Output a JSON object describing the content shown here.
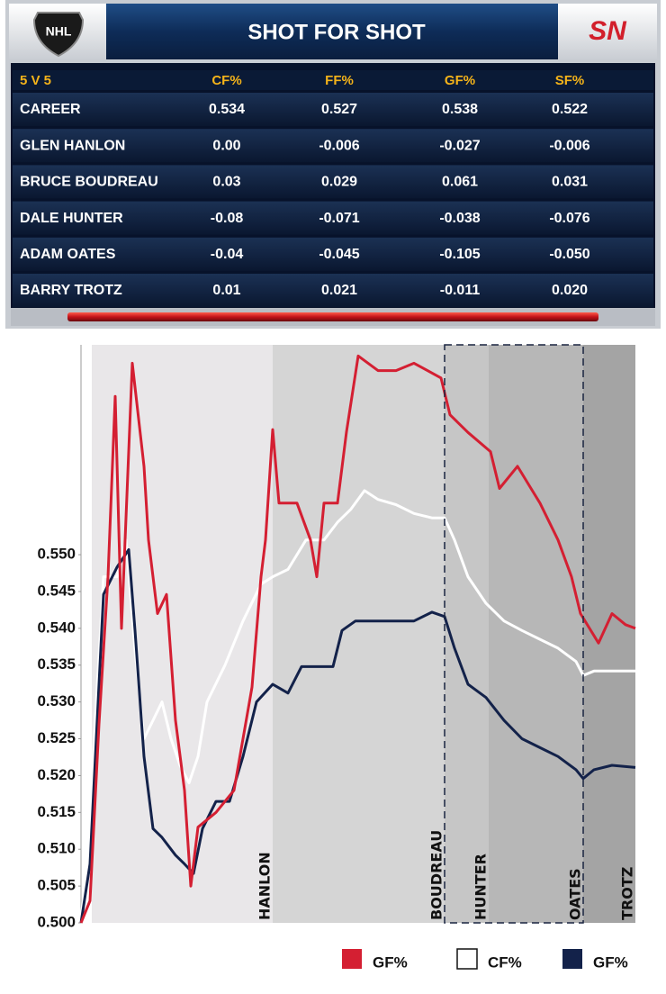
{
  "header": {
    "logo_left": "NHL",
    "title": "SHOT FOR SHOT",
    "logo_right": "SN"
  },
  "table": {
    "header": [
      "5 V 5",
      "CF%",
      "FF%",
      "GF%",
      "SF%"
    ],
    "rows": [
      [
        "CAREER",
        "0.534",
        "0.527",
        "0.538",
        "0.522"
      ],
      [
        "GLEN HANLON",
        "0.00",
        "-0.006",
        "-0.027",
        "-0.006"
      ],
      [
        "BRUCE BOUDREAU",
        "0.03",
        "0.029",
        "0.061",
        "0.031"
      ],
      [
        "DALE HUNTER",
        "-0.08",
        "-0.071",
        "-0.038",
        "-0.076"
      ],
      [
        "ADAM OATES",
        "-0.04",
        "-0.045",
        "-0.105",
        "-0.050"
      ],
      [
        "BARRY TROTZ",
        "0.01",
        "0.021",
        "-0.011",
        "0.020"
      ]
    ]
  },
  "chart_data": {
    "type": "line",
    "xlim": [
      0,
      616
    ],
    "ylim": [
      0.5,
      0.5785
    ],
    "yticks": [
      {
        "value": 0.5,
        "label": "0.500"
      },
      0.505,
      {
        "value": 0.51,
        "label": "0.510"
      },
      0.515,
      {
        "value": 0.52,
        "label": "0.520"
      },
      0.525,
      {
        "value": 0.53,
        "label": "0.530"
      },
      0.535,
      {
        "value": 0.54,
        "label": "0.540"
      },
      0.545,
      {
        "value": 0.55,
        "label": "0.550"
      }
    ],
    "eras": [
      {
        "label": "HANLON",
        "end": 213,
        "color": "#e9e7e9"
      },
      {
        "label": "BOUDREAU",
        "end": 404,
        "color": "#d5d5d5"
      },
      {
        "label": "HUNTER",
        "end": 453,
        "color": "#c6c6c6"
      },
      {
        "label": "OATES",
        "end": 558,
        "color": "#b7b7b7"
      },
      {
        "label": "TROTZ",
        "end": 616,
        "color": "#a4a4a4"
      }
    ],
    "series": [
      {
        "name": "GF%",
        "color": "#d41f32",
        "x": [
          0,
          10,
          20,
          30,
          38,
          45,
          57,
          70,
          75,
          85,
          95,
          105,
          115,
          122,
          130,
          150,
          170,
          180,
          190,
          200,
          205,
          213,
          220,
          240,
          255,
          262,
          270,
          285,
          295,
          308,
          330,
          350,
          370,
          385,
          400,
          410,
          430,
          455,
          465,
          485,
          500,
          510,
          530,
          545,
          555,
          575,
          590,
          605,
          616
        ],
        "values": [
          0.5,
          0.503,
          0.527,
          0.547,
          0.5715,
          0.54,
          0.576,
          0.562,
          0.552,
          0.542,
          0.5446,
          0.5275,
          0.518,
          0.505,
          0.513,
          0.515,
          0.518,
          0.525,
          0.532,
          0.547,
          0.552,
          0.567,
          0.557,
          0.557,
          0.552,
          0.547,
          0.557,
          0.557,
          0.5667,
          0.577,
          0.575,
          0.575,
          0.576,
          0.575,
          0.574,
          0.569,
          0.5666,
          0.564,
          0.559,
          0.562,
          0.559,
          0.557,
          0.552,
          0.547,
          0.542,
          0.538,
          0.542,
          0.5405,
          0.54
        ]
      },
      {
        "name": "CF%",
        "color": "#ffffff",
        "x": [
          0,
          10,
          25,
          40,
          50,
          60,
          70,
          80,
          90,
          100,
          110,
          120,
          130,
          140,
          160,
          180,
          200,
          213,
          230,
          250,
          270,
          285,
          300,
          315,
          330,
          350,
          370,
          390,
          404,
          415,
          430,
          450,
          470,
          490,
          510,
          530,
          550,
          558,
          570,
          590,
          616
        ],
        "values": [
          0.5,
          0.515,
          0.547,
          0.547,
          0.552,
          0.537,
          0.525,
          0.5275,
          0.53,
          0.525,
          0.5214,
          0.519,
          0.5226,
          0.53,
          0.535,
          0.541,
          0.546,
          0.547,
          0.548,
          0.552,
          0.552,
          0.5544,
          0.5562,
          0.5587,
          0.5575,
          0.5568,
          0.5556,
          0.555,
          0.555,
          0.552,
          0.547,
          0.5434,
          0.541,
          0.5397,
          0.5385,
          0.5373,
          0.5355,
          0.5336,
          0.5342,
          0.5342,
          0.5342
        ]
      },
      {
        "name": "GF%",
        "color": "#13224a",
        "x": [
          0,
          10,
          25,
          40,
          53,
          60,
          70,
          80,
          90,
          105,
          115,
          125,
          135,
          150,
          165,
          180,
          195,
          213,
          230,
          245,
          265,
          280,
          290,
          305,
          330,
          350,
          370,
          390,
          404,
          415,
          430,
          450,
          470,
          490,
          510,
          530,
          550,
          558,
          570,
          590,
          616
        ],
        "values": [
          0.5,
          0.508,
          0.5446,
          0.5483,
          0.5507,
          0.5397,
          0.5226,
          0.5128,
          0.5116,
          0.5092,
          0.508,
          0.5067,
          0.5128,
          0.5165,
          0.5165,
          0.5226,
          0.53,
          0.5324,
          0.5312,
          0.5348,
          0.5348,
          0.5348,
          0.5397,
          0.541,
          0.541,
          0.541,
          0.541,
          0.5422,
          0.5416,
          0.5373,
          0.5324,
          0.5306,
          0.5275,
          0.525,
          0.5238,
          0.5226,
          0.5208,
          0.5196,
          0.5208,
          0.5214,
          0.5211
        ]
      }
    ]
  }
}
